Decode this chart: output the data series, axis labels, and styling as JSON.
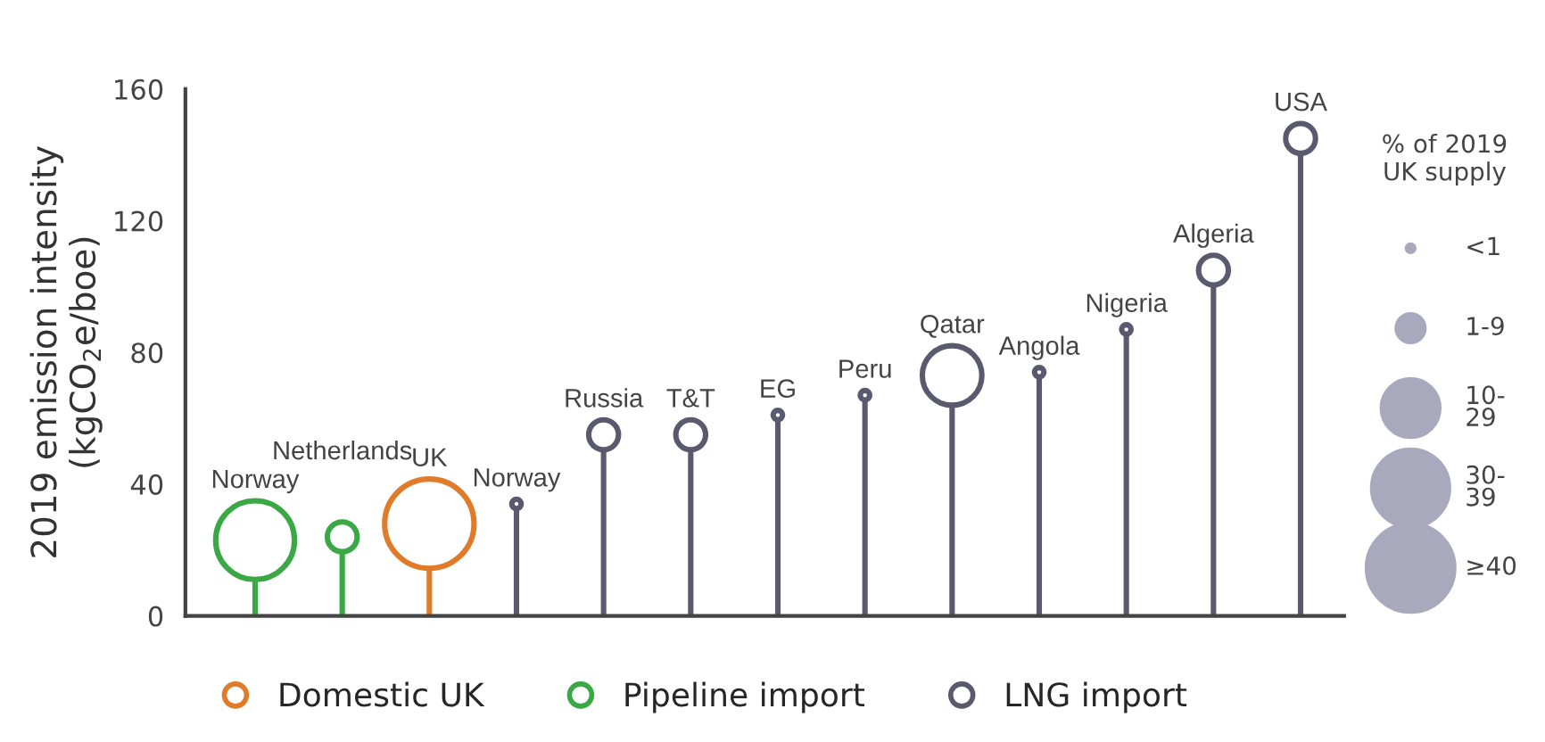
{
  "chart_data": {
    "type": "lollipop",
    "categories": [
      "Norway",
      "Netherlands",
      "UK",
      "Norway",
      "Russia",
      "T&T",
      "EG",
      "Peru",
      "Qatar",
      "Angola",
      "Nigeria",
      "Algeria",
      "USA"
    ],
    "series": [
      {
        "name": "Domestic UK",
        "color": "#e07b2a",
        "values": [
          null,
          null,
          28,
          null,
          null,
          null,
          null,
          null,
          null,
          null,
          null,
          null,
          null
        ],
        "sizes": [
          null,
          null,
          45,
          null,
          null,
          null,
          null,
          null,
          null,
          null,
          null,
          null,
          null
        ]
      },
      {
        "name": "Pipeline import",
        "color": "#3aa845",
        "values": [
          23,
          24,
          null,
          null,
          null,
          null,
          null,
          null,
          null,
          null,
          null,
          null,
          null
        ],
        "sizes": [
          35,
          5,
          null,
          null,
          null,
          null,
          null,
          null,
          null,
          null,
          null,
          null,
          null
        ]
      },
      {
        "name": "LNG import",
        "color": "#5a5a6e",
        "values": [
          null,
          null,
          null,
          34,
          55,
          55,
          61,
          67,
          73,
          74,
          87,
          105,
          145
        ],
        "sizes": [
          null,
          null,
          null,
          0.5,
          5,
          5,
          0.5,
          0.5,
          20,
          0.5,
          0.5,
          5,
          5
        ]
      }
    ],
    "size_legend": [
      {
        "value": 0.5,
        "label": "<1"
      },
      {
        "value": 5,
        "label": "1-9"
      },
      {
        "value": 20,
        "label": "10-\n29"
      },
      {
        "value": 35,
        "label": "30-\n39"
      },
      {
        "value": 45,
        "label": "≥40"
      }
    ],
    "legend_title": "% of 2019\nUK supply",
    "ylabel": "2019 emission intensity\n(kgCO$_{2}$e/boe)",
    "ylim": [
      0,
      160
    ],
    "yticks": [
      0,
      40,
      80,
      120,
      160
    ],
    "legend": "bottom",
    "marker": "circle"
  }
}
